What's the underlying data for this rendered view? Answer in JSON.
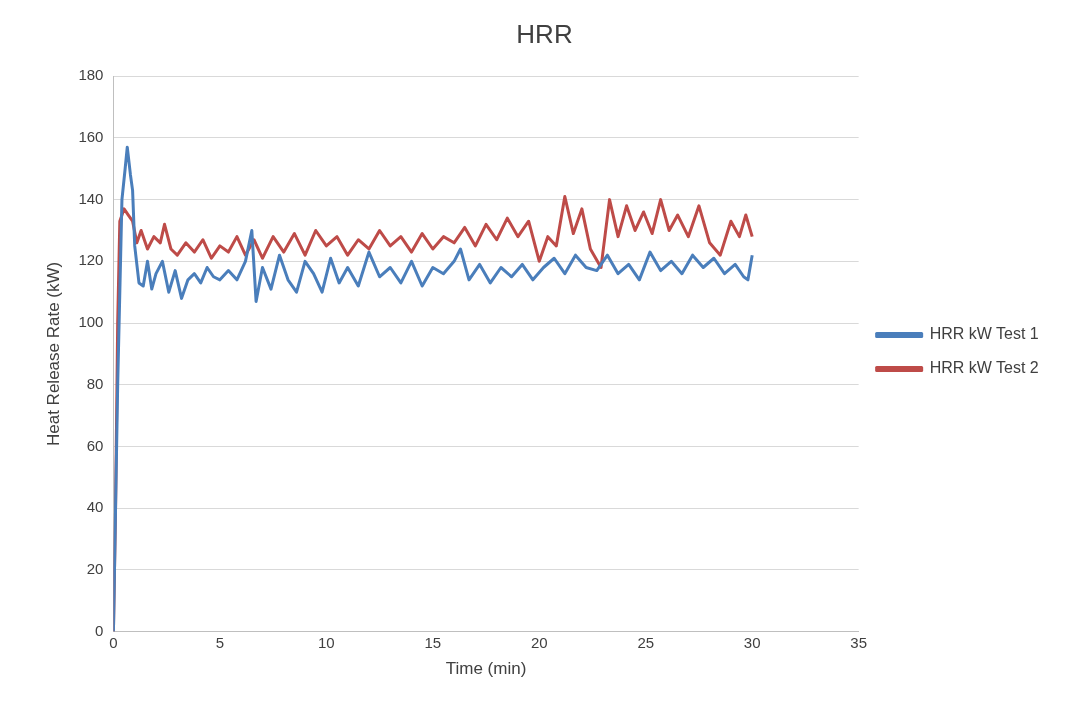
{
  "chart_data": {
    "type": "line",
    "title": "HRR",
    "xlabel": "Time (min)",
    "ylabel": "Heat Release Rate (kW)",
    "xlim": [
      0,
      35
    ],
    "xticks": [
      0,
      5,
      10,
      15,
      20,
      25,
      30,
      35
    ],
    "ylim": [
      0,
      180
    ],
    "yticks": [
      0,
      20,
      40,
      60,
      80,
      100,
      120,
      140,
      160,
      180
    ],
    "grid": "y",
    "legend": "right",
    "marker": "none",
    "line_style": "solid",
    "series": [
      {
        "name": "HRR kW Test 1",
        "color": "#4a7ebb",
        "x": [
          0,
          0.2,
          0.4,
          0.55,
          0.65,
          0.8,
          0.9,
          1.0,
          1.2,
          1.4,
          1.6,
          1.8,
          2.0,
          2.3,
          2.6,
          2.9,
          3.2,
          3.5,
          3.8,
          4.1,
          4.4,
          4.7,
          5.0,
          5.4,
          5.8,
          6.2,
          6.5,
          6.7,
          7.0,
          7.4,
          7.8,
          8.2,
          8.6,
          9.0,
          9.4,
          9.8,
          10.2,
          10.6,
          11.0,
          11.5,
          12.0,
          12.5,
          13.0,
          13.5,
          14.0,
          14.5,
          15.0,
          15.5,
          16.0,
          16.3,
          16.7,
          17.2,
          17.7,
          18.2,
          18.7,
          19.2,
          19.7,
          20.2,
          20.7,
          21.2,
          21.7,
          22.2,
          22.7,
          23.2,
          23.7,
          24.2,
          24.7,
          25.2,
          25.7,
          26.2,
          26.7,
          27.2,
          27.7,
          28.2,
          28.7,
          29.2,
          29.6,
          29.8,
          30.0
        ],
        "values": [
          0,
          80,
          140,
          150,
          157,
          148,
          143,
          125,
          113,
          112,
          120,
          111,
          116,
          120,
          110,
          117,
          108,
          114,
          116,
          113,
          118,
          115,
          114,
          117,
          114,
          120,
          130,
          107,
          118,
          111,
          122,
          114,
          110,
          120,
          116,
          110,
          121,
          113,
          118,
          112,
          123,
          115,
          118,
          113,
          120,
          112,
          118,
          116,
          120,
          124,
          114,
          119,
          113,
          118,
          115,
          119,
          114,
          118,
          121,
          116,
          122,
          118,
          117,
          122,
          116,
          119,
          114,
          123,
          117,
          120,
          116,
          122,
          118,
          121,
          116,
          119,
          115,
          114,
          122
        ]
      },
      {
        "name": "HRR kW Test 2",
        "color": "#be4b48",
        "x": [
          0,
          0.1,
          0.2,
          0.3,
          0.5,
          0.7,
          0.9,
          1.1,
          1.3,
          1.6,
          1.9,
          2.2,
          2.4,
          2.7,
          3.0,
          3.4,
          3.8,
          4.2,
          4.6,
          5.0,
          5.4,
          5.8,
          6.2,
          6.6,
          7.0,
          7.5,
          8.0,
          8.5,
          9.0,
          9.5,
          10.0,
          10.5,
          11.0,
          11.5,
          12.0,
          12.5,
          13.0,
          13.5,
          14.0,
          14.5,
          15.0,
          15.5,
          16.0,
          16.5,
          17.0,
          17.5,
          18.0,
          18.5,
          19.0,
          19.5,
          20.0,
          20.4,
          20.8,
          21.2,
          21.6,
          22.0,
          22.4,
          22.9,
          23.3,
          23.7,
          24.1,
          24.5,
          24.9,
          25.3,
          25.7,
          26.1,
          26.5,
          27.0,
          27.5,
          28.0,
          28.5,
          29.0,
          29.4,
          29.7,
          30.0
        ],
        "values": [
          0,
          40,
          100,
          133,
          137,
          135,
          133,
          126,
          130,
          124,
          128,
          126,
          132,
          124,
          122,
          126,
          123,
          127,
          121,
          125,
          123,
          128,
          122,
          127,
          121,
          128,
          123,
          129,
          122,
          130,
          125,
          128,
          122,
          127,
          124,
          130,
          125,
          128,
          123,
          129,
          124,
          128,
          126,
          131,
          125,
          132,
          127,
          134,
          128,
          133,
          120,
          128,
          125,
          141,
          129,
          137,
          124,
          118,
          140,
          128,
          138,
          130,
          136,
          129,
          140,
          130,
          135,
          128,
          138,
          126,
          122,
          133,
          128,
          135,
          128
        ]
      }
    ]
  }
}
